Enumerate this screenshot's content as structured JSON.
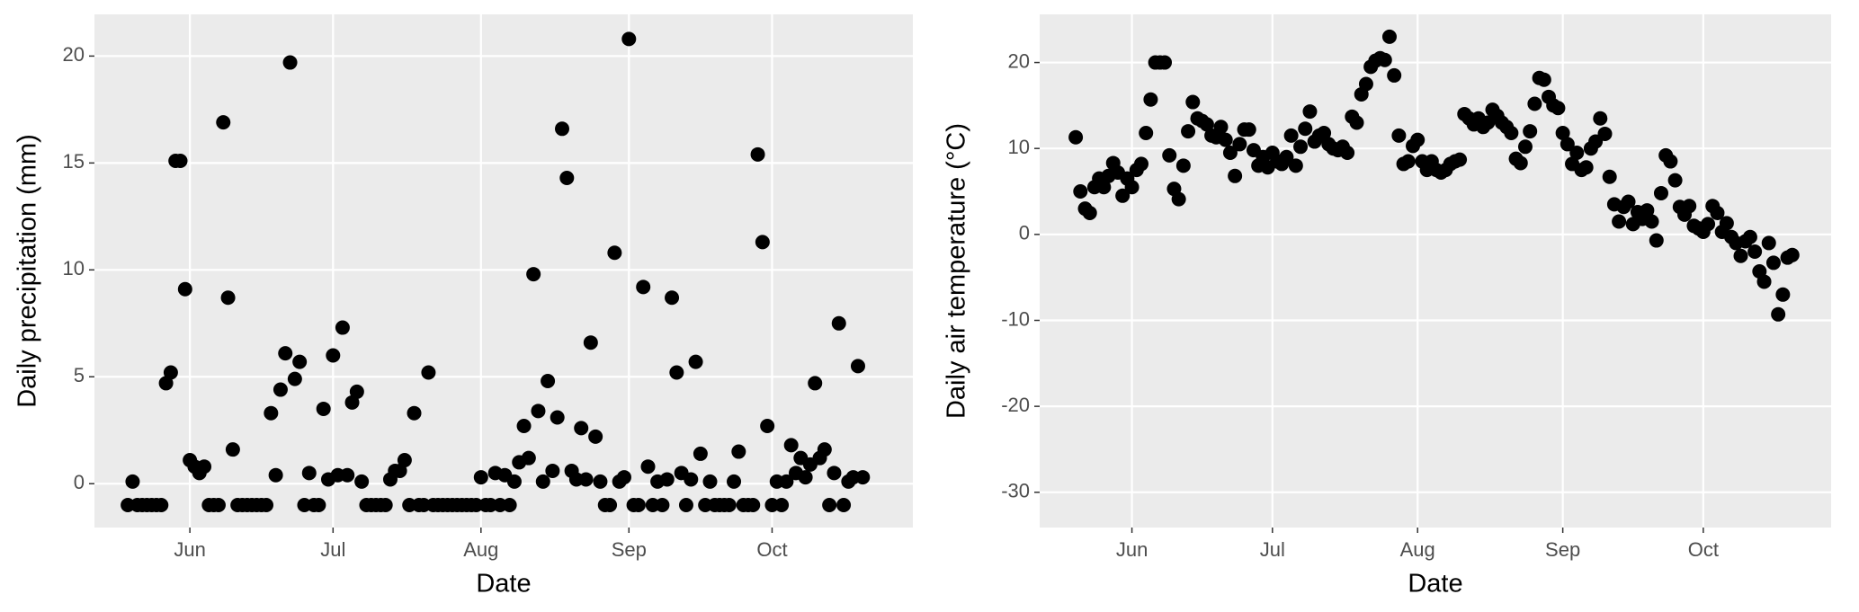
{
  "chart_data": [
    {
      "type": "scatter",
      "x_label": "Date",
      "y_label": "Daily precipitation (mm)",
      "color": "#000000",
      "grid": true,
      "xlim": [
        132,
        303.5
      ],
      "ylim": [
        -2.05,
        21.95
      ],
      "xticks": [
        {
          "value": 152,
          "label": "Jun"
        },
        {
          "value": 182,
          "label": "Jul"
        },
        {
          "value": 213,
          "label": "Aug"
        },
        {
          "value": 244,
          "label": "Sep"
        },
        {
          "value": 274,
          "label": "Oct"
        }
      ],
      "yticks": [
        0,
        5,
        10,
        15,
        20
      ],
      "x": [
        139,
        140,
        141,
        142,
        143,
        144,
        145,
        146,
        147,
        148,
        149,
        150,
        151,
        152,
        153,
        154,
        155,
        156,
        157,
        158,
        159,
        160,
        161,
        162,
        163,
        164,
        165,
        166,
        167,
        168,
        169,
        170,
        171,
        172,
        173,
        174,
        175,
        176,
        177,
        178,
        179,
        180,
        181,
        182,
        183,
        184,
        185,
        186,
        187,
        188,
        189,
        190,
        191,
        192,
        193,
        194,
        195,
        196,
        197,
        198,
        199,
        200,
        201,
        202,
        203,
        204,
        205,
        206,
        207,
        208,
        209,
        210,
        211,
        212,
        213,
        214,
        215,
        216,
        217,
        218,
        219,
        220,
        221,
        222,
        223,
        224,
        225,
        226,
        227,
        228,
        229,
        230,
        231,
        232,
        233,
        234,
        235,
        236,
        237,
        238,
        239,
        240,
        241,
        242,
        243,
        244,
        245,
        246,
        247,
        248,
        249,
        250,
        251,
        252,
        253,
        254,
        255,
        256,
        257,
        258,
        259,
        260,
        261,
        262,
        263,
        264,
        265,
        266,
        267,
        268,
        269,
        270,
        271,
        272,
        273,
        274,
        275,
        276,
        277,
        278,
        279,
        280,
        281,
        282,
        283,
        284,
        285,
        286,
        287,
        288,
        289,
        290,
        291,
        292,
        293
      ],
      "values": [
        -1,
        0.1,
        -1,
        -1,
        -1,
        -1,
        -1,
        -1,
        4.7,
        5.2,
        15.1,
        15.1,
        9.1,
        1.1,
        0.8,
        0.5,
        0.8,
        -1,
        -1,
        -1,
        16.9,
        8.7,
        1.6,
        -1,
        -1,
        -1,
        -1,
        -1,
        -1,
        -1,
        3.3,
        0.4,
        4.4,
        6.1,
        19.7,
        4.9,
        5.7,
        -1,
        0.5,
        -1,
        -1,
        3.5,
        0.2,
        6.0,
        0.4,
        7.3,
        0.4,
        3.8,
        4.3,
        0.1,
        -1,
        -1,
        -1,
        -1,
        -1,
        0.2,
        0.6,
        0.6,
        1.1,
        -1,
        3.3,
        -1,
        -1,
        5.2,
        -1,
        -1,
        -1,
        -1,
        -1,
        -1,
        -1,
        -1,
        -1,
        -1,
        0.3,
        -1,
        -1,
        0.5,
        -1,
        0.4,
        -1,
        0.1,
        1.0,
        2.7,
        1.2,
        9.8,
        3.4,
        0.1,
        4.8,
        0.6,
        3.1,
        16.6,
        14.3,
        0.6,
        0.2,
        2.6,
        0.2,
        6.6,
        2.2,
        0.1,
        -1,
        -1,
        10.8,
        0.1,
        0.3,
        20.8,
        -1,
        -1,
        9.2,
        0.8,
        -1,
        0.1,
        -1,
        0.2,
        8.7,
        5.2,
        0.5,
        -1,
        0.2,
        5.7,
        1.4,
        -1,
        0.1,
        -1,
        -1,
        -1,
        -1,
        0.1,
        1.5,
        -1,
        -1,
        -1,
        15.4,
        11.3,
        2.7,
        -1,
        0.1,
        -1,
        0.1,
        1.8,
        0.5,
        1.2,
        0.3,
        0.9,
        4.7,
        1.2,
        1.6,
        -1,
        0.5,
        7.5,
        -1,
        0.1,
        0.3,
        5.5,
        0.3
      ]
    },
    {
      "type": "scatter",
      "x_label": "Date",
      "y_label": "Daily air temperature (°C)",
      "color": "#000000",
      "grid": true,
      "xlim": [
        132.3,
        301.3
      ],
      "ylim": [
        -34.1,
        25.6
      ],
      "xticks": [
        {
          "value": 152,
          "label": "Jun"
        },
        {
          "value": 182,
          "label": "Jul"
        },
        {
          "value": 213,
          "label": "Aug"
        },
        {
          "value": 244,
          "label": "Sep"
        },
        {
          "value": 274,
          "label": "Oct"
        }
      ],
      "yticks": [
        -30,
        -20,
        -10,
        0,
        10,
        20
      ],
      "x": [
        140,
        141,
        142,
        143,
        144,
        145,
        146,
        147,
        148,
        149,
        150,
        151,
        152,
        153,
        154,
        155,
        156,
        157,
        158,
        159,
        160,
        161,
        162,
        163,
        164,
        165,
        166,
        167,
        168,
        169,
        170,
        171,
        172,
        173,
        174,
        175,
        176,
        177,
        178,
        179,
        180,
        181,
        182,
        183,
        184,
        185,
        186,
        187,
        188,
        189,
        190,
        191,
        192,
        193,
        194,
        195,
        196,
        197,
        198,
        199,
        200,
        201,
        202,
        203,
        204,
        205,
        206,
        207,
        208,
        209,
        210,
        211,
        212,
        213,
        214,
        215,
        216,
        217,
        218,
        219,
        220,
        221,
        222,
        223,
        224,
        225,
        226,
        227,
        228,
        229,
        230,
        231,
        232,
        233,
        234,
        235,
        236,
        237,
        238,
        239,
        240,
        241,
        242,
        243,
        244,
        245,
        246,
        247,
        248,
        249,
        250,
        251,
        252,
        253,
        254,
        255,
        256,
        257,
        258,
        259,
        260,
        261,
        262,
        263,
        264,
        265,
        266,
        267,
        268,
        269,
        270,
        271,
        272,
        273,
        274,
        275,
        276,
        277,
        278,
        279,
        280,
        281,
        282,
        283,
        284,
        285,
        286,
        287,
        288,
        289,
        290,
        291,
        292,
        293
      ],
      "values": [
        11.3,
        5.0,
        3.0,
        2.5,
        5.5,
        6.5,
        5.5,
        6.8,
        8.3,
        7.2,
        4.5,
        6.5,
        5.5,
        7.5,
        8.2,
        11.8,
        15.7,
        20.0,
        20.0,
        20.0,
        9.2,
        5.3,
        4.1,
        8.0,
        12.0,
        15.4,
        13.5,
        13.2,
        12.8,
        11.5,
        11.3,
        12.5,
        11.0,
        9.5,
        6.8,
        10.5,
        12.2,
        12.2,
        9.8,
        8.0,
        9.0,
        7.8,
        9.5,
        8.5,
        8.2,
        9.0,
        11.5,
        8.0,
        10.2,
        12.3,
        14.3,
        10.8,
        11.5,
        11.8,
        10.5,
        10.0,
        9.8,
        10.2,
        9.5,
        13.7,
        13.0,
        16.3,
        17.5,
        19.5,
        20.2,
        20.5,
        20.3,
        23.0,
        18.5,
        11.5,
        8.2,
        8.5,
        10.3,
        11.0,
        8.5,
        7.5,
        8.5,
        7.5,
        7.2,
        7.5,
        8.2,
        8.5,
        8.7,
        14.0,
        13.5,
        12.8,
        13.5,
        12.5,
        13.0,
        14.5,
        13.8,
        13.0,
        12.5,
        11.8,
        8.8,
        8.3,
        10.2,
        12.0,
        15.2,
        18.2,
        18.0,
        16.0,
        15.0,
        14.7,
        11.8,
        10.5,
        8.2,
        9.5,
        7.5,
        7.8,
        10.0,
        10.8,
        13.5,
        11.7,
        6.7,
        3.5,
        1.5,
        3.2,
        3.8,
        1.2,
        2.6,
        1.8,
        2.8,
        1.5,
        -0.7,
        4.8,
        9.2,
        8.5,
        6.3,
        3.2,
        2.3,
        3.3,
        1.0,
        0.7,
        0.3,
        1.2,
        3.3,
        2.5,
        0.3,
        1.3,
        -0.3,
        -1.0,
        -2.5,
        -0.8,
        -0.3,
        -2.0,
        -4.3,
        -5.5,
        -1.0,
        -3.3,
        -9.3,
        -7.0,
        -2.7,
        -2.4
      ]
    }
  ]
}
